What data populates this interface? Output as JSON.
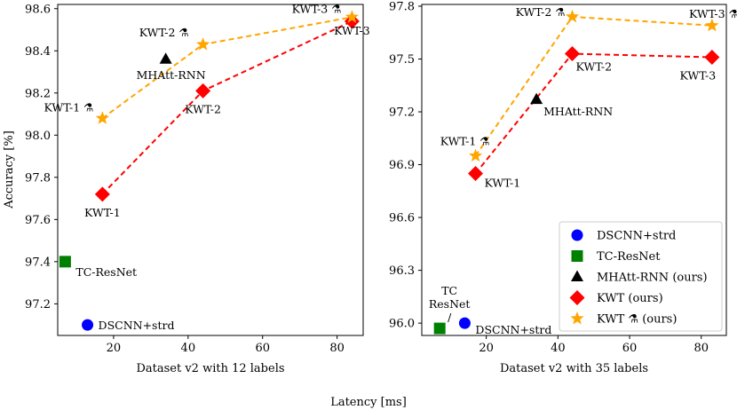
{
  "figure": {
    "shared_xlabel": "Latency [ms]",
    "ylabel": "Accuracy [%]"
  },
  "chart_data": [
    {
      "type": "scatter",
      "title": "",
      "xlabel": "Dataset v2 with 12 labels",
      "ylabel": "Accuracy [%]",
      "xlim": [
        5,
        87
      ],
      "ylim": [
        97.05,
        98.62
      ],
      "xticks": [
        20,
        40,
        60,
        80
      ],
      "yticks": [
        97.2,
        97.4,
        97.6,
        97.8,
        98.0,
        98.2,
        98.4,
        98.6
      ],
      "ytick_labels": [
        "97.2",
        "97.4",
        "97.6",
        "97.8",
        "98.0",
        "98.2",
        "98.4",
        "98.6"
      ],
      "series": [
        {
          "name": "DSCNN+strd",
          "marker": "circle",
          "color": "#0000ff",
          "connected": false,
          "points": [
            {
              "x": 13,
              "y": 97.1,
              "label": "DSCNN+strd"
            }
          ]
        },
        {
          "name": "TC-ResNet",
          "marker": "square",
          "color": "#008000",
          "connected": false,
          "points": [
            {
              "x": 7,
              "y": 97.4,
              "label": "TC-ResNet"
            }
          ]
        },
        {
          "name": "MHAtt-RNN (ours)",
          "marker": "triangle",
          "color": "#000000",
          "connected": false,
          "points": [
            {
              "x": 34,
              "y": 98.36,
              "label": "MHAtt-RNN"
            }
          ]
        },
        {
          "name": "KWT (ours)",
          "marker": "diamond",
          "color": "#ff0000",
          "connected": true,
          "points": [
            {
              "x": 17,
              "y": 97.72,
              "label": "KWT-1"
            },
            {
              "x": 44,
              "y": 98.21,
              "label": "KWT-2"
            },
            {
              "x": 84,
              "y": 98.54,
              "label": "KWT-3"
            }
          ]
        },
        {
          "name": "KWT ⚗ (ours)",
          "marker": "star",
          "color": "#ffa500",
          "connected": true,
          "points": [
            {
              "x": 17,
              "y": 98.08,
              "label": "KWT-1 ⚗"
            },
            {
              "x": 44,
              "y": 98.43,
              "label": "KWT-2 ⚗"
            },
            {
              "x": 84,
              "y": 98.56,
              "label": "KWT-3 ⚗"
            }
          ]
        }
      ]
    },
    {
      "type": "scatter",
      "title": "",
      "xlabel": "Dataset v2 with 35 labels",
      "ylabel": "",
      "xlim": [
        2,
        87
      ],
      "ylim": [
        95.93,
        97.81
      ],
      "xticks": [
        20,
        40,
        60,
        80
      ],
      "yticks": [
        96.0,
        96.3,
        96.6,
        96.9,
        97.2,
        97.5,
        97.8
      ],
      "ytick_labels": [
        "96.0",
        "96.3",
        "96.6",
        "96.9",
        "97.2",
        "97.5",
        "97.8"
      ],
      "series": [
        {
          "name": "DSCNN+strd",
          "marker": "circle",
          "color": "#0000ff",
          "connected": false,
          "points": [
            {
              "x": 14,
              "y": 96.0,
              "label": "DSCNN+strd"
            }
          ]
        },
        {
          "name": "TC-ResNet",
          "marker": "square",
          "color": "#008000",
          "connected": false,
          "points": [
            {
              "x": 7,
              "y": 95.97,
              "label": "TC\nResNet\n/"
            }
          ]
        },
        {
          "name": "MHAtt-RNN (ours)",
          "marker": "triangle",
          "color": "#000000",
          "connected": false,
          "points": [
            {
              "x": 34,
              "y": 97.27,
              "label": "MHAtt-RNN"
            }
          ]
        },
        {
          "name": "KWT (ours)",
          "marker": "diamond",
          "color": "#ff0000",
          "connected": true,
          "points": [
            {
              "x": 17,
              "y": 96.85,
              "label": "KWT-1"
            },
            {
              "x": 44,
              "y": 97.53,
              "label": "KWT-2"
            },
            {
              "x": 83,
              "y": 97.51,
              "label": "KWT-3"
            }
          ]
        },
        {
          "name": "KWT ⚗ (ours)",
          "marker": "star",
          "color": "#ffa500",
          "connected": true,
          "points": [
            {
              "x": 17,
              "y": 96.95,
              "label": "KWT-1 ⚗"
            },
            {
              "x": 44,
              "y": 97.74,
              "label": "KWT-2 ⚗"
            },
            {
              "x": 83,
              "y": 97.69,
              "label": "KWT-3 ⚗"
            }
          ]
        }
      ],
      "legend": {
        "placement": "lower-right",
        "entries": [
          "DSCNN+strd",
          "TC-ResNet",
          "MHAtt-RNN (ours)",
          "KWT (ours)",
          "KWT ⚗ (ours)"
        ]
      }
    }
  ]
}
